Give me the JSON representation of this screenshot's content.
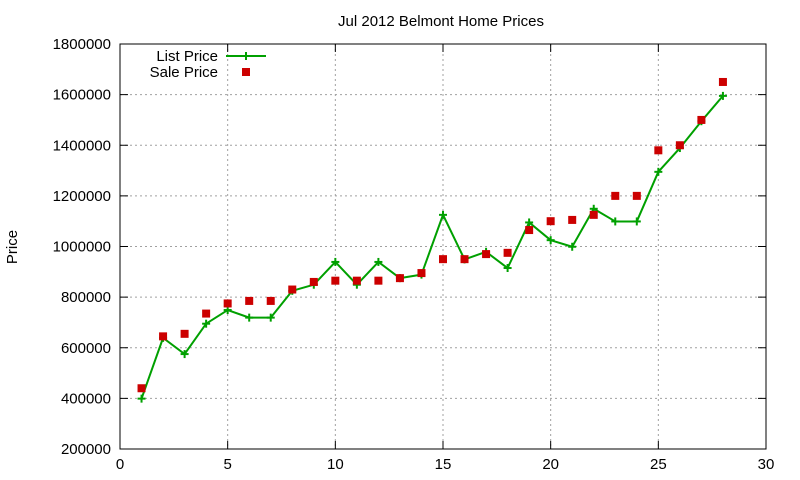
{
  "chart_data": {
    "type": "line",
    "title": "Jul 2012 Belmont Home Prices",
    "xlabel": "",
    "ylabel": "Price",
    "xlim": [
      0,
      30
    ],
    "ylim": [
      200000,
      1800000
    ],
    "xticks": [
      0,
      5,
      10,
      15,
      20,
      25,
      30
    ],
    "yticks": [
      200000,
      400000,
      600000,
      800000,
      1000000,
      1200000,
      1400000,
      1600000,
      1800000
    ],
    "grid": true,
    "legend_position": "top-left",
    "series": [
      {
        "name": "List Price",
        "style": "line-with-plus-markers",
        "color": "#00a000",
        "x": [
          1,
          2,
          3,
          4,
          5,
          6,
          7,
          8,
          9,
          10,
          11,
          12,
          13,
          14,
          15,
          16,
          17,
          18,
          19,
          20,
          21,
          22,
          23,
          24,
          25,
          26,
          27,
          28
        ],
        "values": [
          399000,
          639000,
          575000,
          695000,
          749000,
          719000,
          719000,
          825000,
          849000,
          939000,
          849000,
          939000,
          875000,
          889000,
          1125000,
          949000,
          979000,
          915000,
          1095000,
          1025000,
          999000,
          1149000,
          1099000,
          1099000,
          1295000,
          1389000,
          1495000,
          1595000
        ]
      },
      {
        "name": "Sale Price",
        "style": "square-markers",
        "color": "#cc0000",
        "x": [
          1,
          2,
          3,
          4,
          5,
          6,
          7,
          8,
          9,
          10,
          11,
          12,
          13,
          14,
          15,
          16,
          17,
          18,
          19,
          20,
          21,
          22,
          23,
          24,
          25,
          26,
          27,
          28
        ],
        "values": [
          440000,
          645000,
          655000,
          735000,
          775000,
          785000,
          785000,
          830000,
          860000,
          865000,
          865000,
          865000,
          875000,
          895000,
          950000,
          950000,
          970000,
          975000,
          1065000,
          1100000,
          1105000,
          1125000,
          1200000,
          1200000,
          1380000,
          1400000,
          1500000,
          1650000
        ]
      }
    ]
  }
}
